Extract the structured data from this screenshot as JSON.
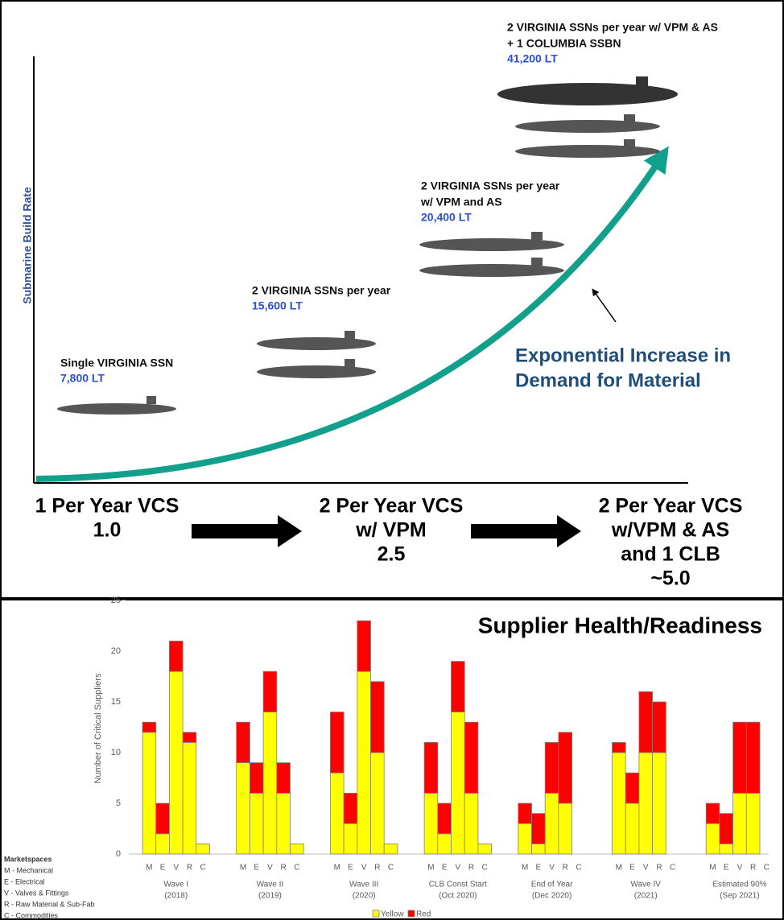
{
  "diagram": {
    "y_label": "Submarine Build Rate",
    "stages": [
      {
        "lines": [
          "Single VIRGINIA SSN"
        ],
        "weight": "7,800 LT"
      },
      {
        "lines": [
          "2 VIRGINIA SSNs per year"
        ],
        "weight": "15,600 LT"
      },
      {
        "lines": [
          "2 VIRGINIA SSNs per year",
          "w/ VPM and AS"
        ],
        "weight": "20,400 LT"
      },
      {
        "lines": [
          "2 VIRGINIA SSNs per year  w/ VPM  & AS",
          "+ 1 COLUMBIA SSBN"
        ],
        "weight": "41,200 LT"
      }
    ],
    "annotation": [
      "Exponential Increase in",
      "Demand for Material"
    ],
    "x_labels": [
      [
        "1 Per Year VCS",
        "1.0"
      ],
      [
        "2 Per Year VCS",
        "w/ VPM",
        "2.5"
      ],
      [
        "2 Per Year VCS",
        "w/VPM & AS",
        "and 1 CLB",
        "~5.0"
      ]
    ]
  },
  "chart_data": {
    "type": "stacked-bar",
    "title": "Supplier Health/Readiness",
    "y_label": "Number of Critical Suppliers",
    "categories": [
      "M",
      "E",
      "V",
      "R",
      "C",
      "M",
      "E",
      "V",
      "R",
      "C",
      "M",
      "E",
      "V",
      "R",
      "C",
      "M",
      "E",
      "V",
      "R",
      "C",
      "M",
      "E",
      "V",
      "R",
      "C",
      "M",
      "E",
      "V",
      "R",
      "C",
      "M",
      "E",
      "V",
      "R",
      "C"
    ],
    "groups": [
      [
        "Wave I",
        "(2018)"
      ],
      [
        "Wave II",
        "(2019)"
      ],
      [
        "Wave III",
        "(2020)"
      ],
      [
        "CLB Const Start",
        "(Oct 2020)"
      ],
      [
        "End of Year",
        "(Dec 2020)"
      ],
      [
        "Wave IV",
        "(2021)"
      ],
      [
        "Estimated 90%",
        "(Sep 2021)"
      ]
    ],
    "series": [
      {
        "name": "Yellow",
        "color": "#ffff00",
        "values": [
          12,
          2,
          18,
          11,
          1,
          9,
          6,
          14,
          6,
          1,
          8,
          3,
          18,
          10,
          1,
          6,
          2,
          14,
          6,
          1,
          3,
          1,
          6,
          5,
          0,
          10,
          5,
          10,
          10,
          0,
          3,
          1,
          6,
          6,
          0
        ]
      },
      {
        "name": "Red",
        "color": "#ff0000",
        "values": [
          1,
          3,
          3,
          1,
          0,
          4,
          3,
          4,
          3,
          0,
          6,
          3,
          5,
          7,
          0,
          5,
          3,
          5,
          7,
          0,
          2,
          3,
          5,
          7,
          0,
          1,
          3,
          6,
          5,
          0,
          2,
          3,
          7,
          7,
          0
        ]
      }
    ],
    "ylim": [
      0,
      25
    ],
    "yticks": [
      0,
      5,
      10,
      15,
      20,
      25
    ],
    "notes": [
      "Marketspaces",
      "M - Mechanical",
      "E - Electrical",
      "V - Valves & Fittings",
      "R - Raw Material & Sub-Fab",
      "C - Commodities"
    ]
  }
}
